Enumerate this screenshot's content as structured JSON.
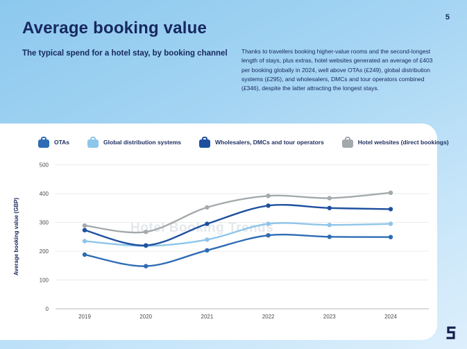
{
  "page": {
    "number": "5"
  },
  "header": {
    "title": "Average booking value",
    "subtitle": "The typical spend for a hotel stay, by booking channel",
    "paragraph": "Thanks to travellers booking higher-value rooms and the second-longest length of stays, plus extras, hotel websites generated an average of £403 per booking globally in 2024, well above OTAs (£249), global distribution systems (£295), and wholesalers, DMCs and tour operators combined (£346), despite the latter attracting the longest stays."
  },
  "watermark": "Hotel Booking Trends",
  "icons": {
    "legend_marker": "suitcase-icon",
    "brand": "brand-logo-icon"
  },
  "colors": {
    "text_navy": "#172860",
    "card_background": "#ffffff",
    "background_blue_top": "#8cc8ee",
    "background_blue_bottom": "#ddeffc"
  },
  "chart_data": {
    "type": "line",
    "title": "Average booking value",
    "x": [
      "2019",
      "2020",
      "2021",
      "2022",
      "2023",
      "2024"
    ],
    "series": [
      {
        "name": "OTAs",
        "color": "#2e6cb5",
        "values": [
          188,
          148,
          203,
          255,
          250,
          249
        ]
      },
      {
        "name": "Global distribution systems",
        "color": "#8ec5ea",
        "values": [
          235,
          218,
          240,
          295,
          291,
          295
        ]
      },
      {
        "name": "Wholesalers, DMCs and tour operators",
        "color": "#1e509e",
        "values": [
          273,
          220,
          295,
          358,
          350,
          346
        ]
      },
      {
        "name": "Hotel websites (direct bookings)",
        "color": "#a4a9ac",
        "values": [
          289,
          267,
          352,
          392,
          384,
          403
        ]
      }
    ],
    "ylabel": "Average booking value (GBP)",
    "ylim": [
      0,
      500
    ],
    "yticks": [
      0,
      100,
      200,
      300,
      400,
      500
    ],
    "legend_position": "top",
    "grid": true
  }
}
